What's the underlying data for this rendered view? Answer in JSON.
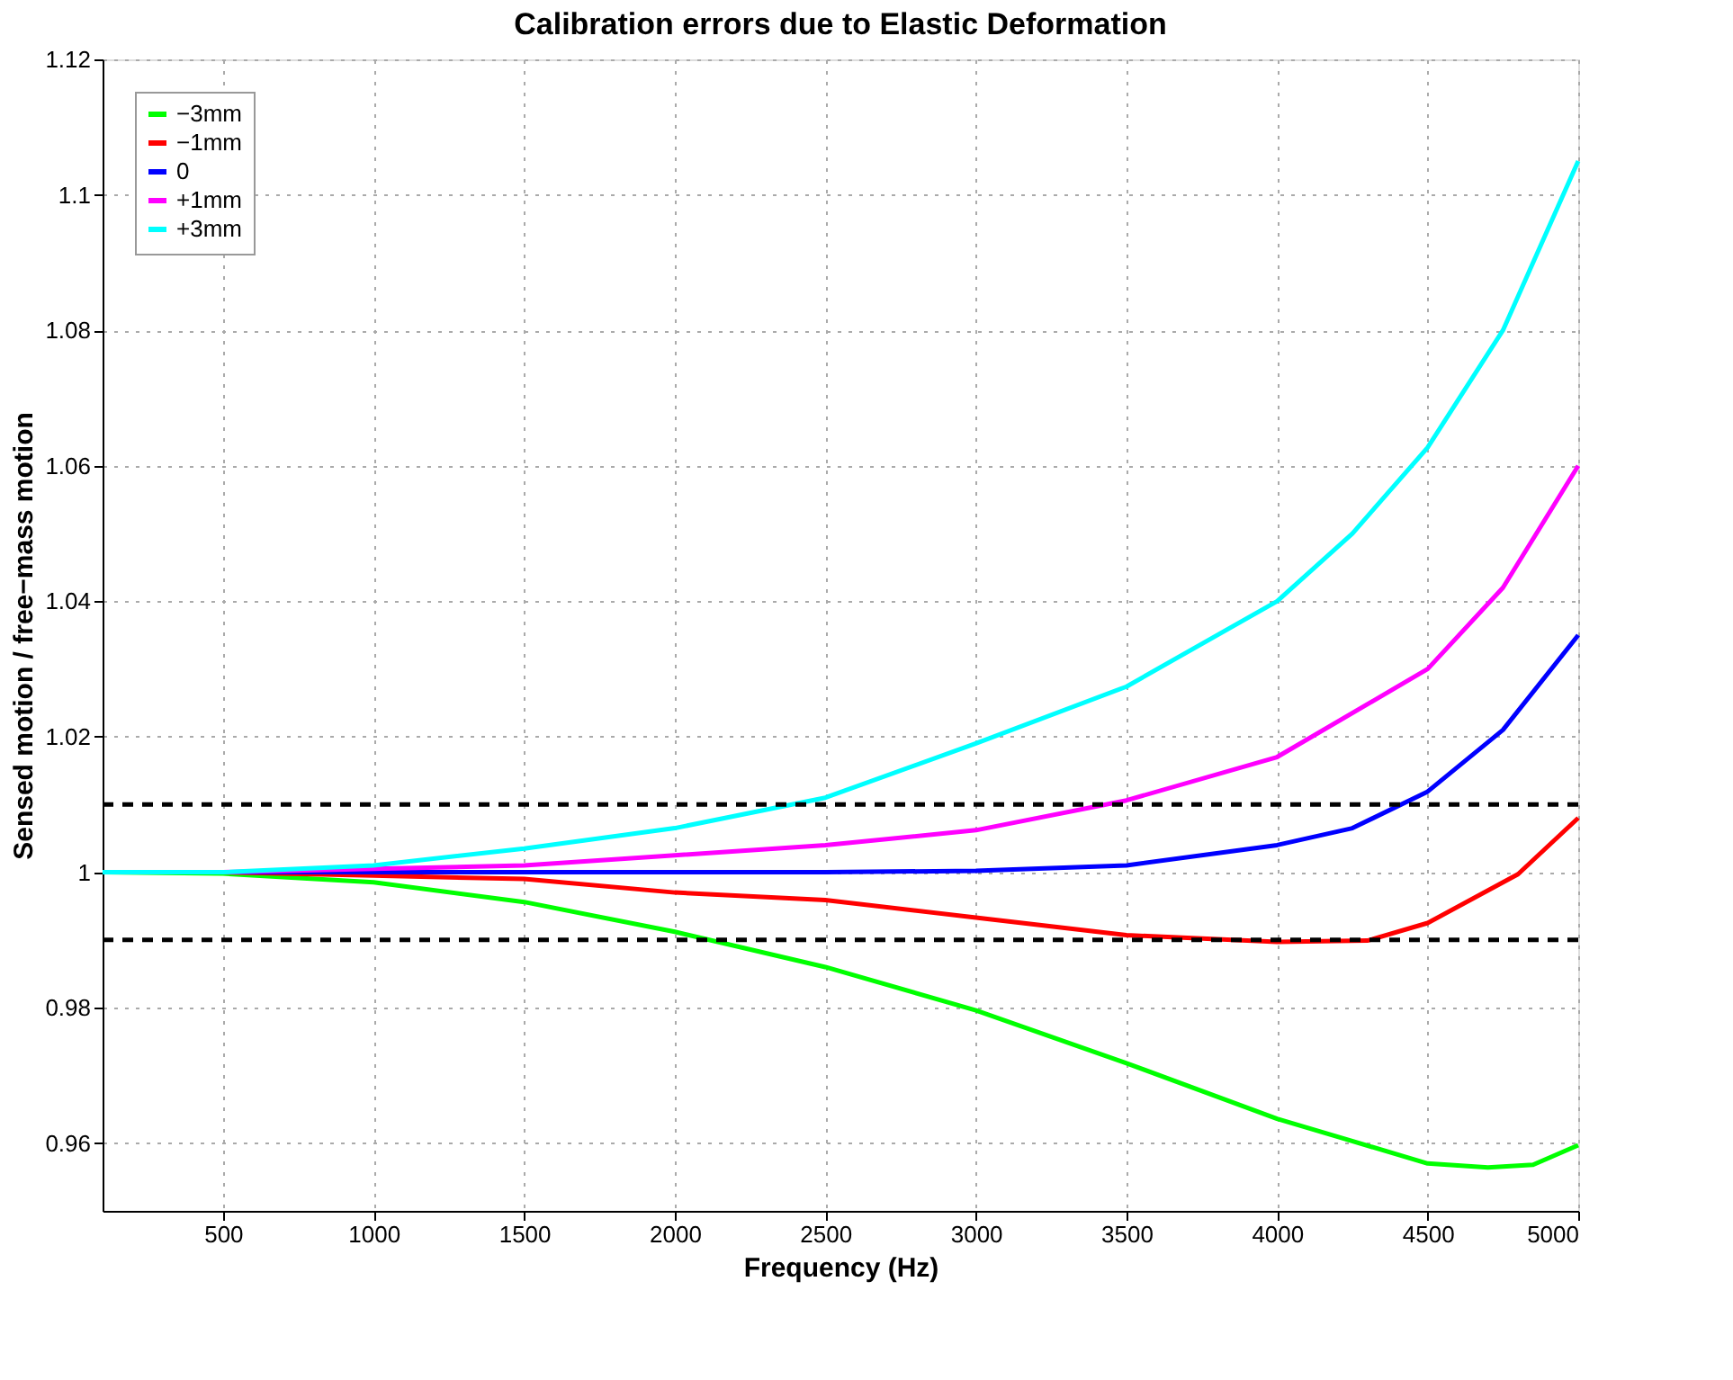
{
  "chart_data": {
    "type": "line",
    "title": "Calibration errors due to Elastic Deformation",
    "xlabel": "Frequency (Hz)",
    "ylabel": "Sensed motion / free−mass motion",
    "x": [
      100,
      500,
      1000,
      1500,
      2000,
      2500,
      3000,
      3500,
      4000,
      4250,
      4500,
      4750,
      5000
    ],
    "series": [
      {
        "name": "−3mm",
        "color": "#00ff00",
        "x": [
          100,
          500,
          1000,
          1500,
          2000,
          2500,
          3000,
          3500,
          4000,
          4500,
          4700,
          4850,
          5000
        ],
        "values": [
          1.0,
          0.9998,
          0.9985,
          0.9956,
          0.9912,
          0.986,
          0.9796,
          0.9718,
          0.9636,
          0.957,
          0.9564,
          0.9568,
          0.9597
        ]
      },
      {
        "name": "−1mm",
        "color": "#ff0000",
        "x": [
          100,
          500,
          1000,
          1500,
          2000,
          2500,
          3000,
          3500,
          4000,
          4300,
          4500,
          4800,
          5000
        ],
        "values": [
          1.0,
          1.0,
          0.9995,
          0.999,
          0.997,
          0.9959,
          0.9933,
          0.9907,
          0.9897,
          0.9899,
          0.9925,
          0.9997,
          1.008
        ]
      },
      {
        "name": "0",
        "color": "#0000ff",
        "values": [
          1.0,
          1.0,
          1.0,
          1.0,
          1.0,
          1.0,
          1.0002,
          1.001,
          1.004,
          1.0065,
          1.0119,
          1.021,
          1.035
        ]
      },
      {
        "name": "+1mm",
        "color": "#ff00ff",
        "x": [
          100,
          500,
          1000,
          1500,
          2000,
          2500,
          3000,
          3500,
          4000,
          4500,
          4750,
          5000
        ],
        "values": [
          1.0,
          1.0,
          1.0005,
          1.001,
          1.0025,
          1.004,
          1.0062,
          1.0106,
          1.017,
          1.03,
          1.042,
          1.06
        ]
      },
      {
        "name": "+3mm",
        "color": "#00ffff",
        "values": [
          1.0,
          1.0,
          1.001,
          1.0035,
          1.0065,
          1.011,
          1.019,
          1.0274,
          1.04,
          1.05,
          1.0627,
          1.08,
          1.105
        ]
      }
    ],
    "xlim": [
      100,
      5000
    ],
    "xticks": [
      500,
      1000,
      1500,
      2000,
      2500,
      3000,
      3500,
      4000,
      4500,
      5000
    ],
    "ylim": [
      0.95,
      1.12
    ],
    "yticks": [
      0.96,
      0.98,
      1,
      1.02,
      1.04,
      1.06,
      1.08,
      1.1,
      1.12
    ],
    "ref_lines": [
      {
        "axis": "y",
        "value": 1.01,
        "color": "#000000",
        "line_style": "dashed"
      },
      {
        "axis": "y",
        "value": 0.99,
        "color": "#000000",
        "line_style": "dashed"
      }
    ],
    "grid": true,
    "legend": "top left",
    "marker": "none",
    "line_style": "solid"
  }
}
